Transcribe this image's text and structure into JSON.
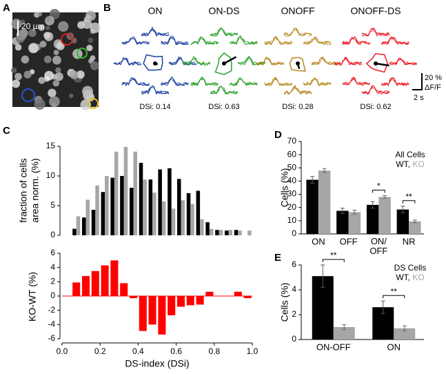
{
  "panel_labels": [
    "A",
    "B",
    "C",
    "D",
    "E"
  ],
  "image": {
    "scale_label": "20 µm"
  },
  "responses": {
    "cells": [
      {
        "name": "ON",
        "color": "#1c3f9e",
        "dsi": "DSi: 0.14"
      },
      {
        "name": "ON-DS",
        "color": "#2ca02c",
        "dsi": "DSi: 0.63"
      },
      {
        "name": "ONOFF",
        "color": "#b8891f",
        "dsi": "DSi: 0.28"
      },
      {
        "name": "ONOFF-DS",
        "color": "#ec1c24",
        "dsi": "DSi: 0.62"
      }
    ],
    "scale_y": "20 %",
    "scale_y_unit": "ΔF/F",
    "scale_x": "2 s"
  },
  "chart_data": [
    {
      "type": "histogram",
      "ylabel": [
        "fraction of cells",
        "area norm. (%)"
      ],
      "bins": [
        0.05,
        0.1,
        0.15,
        0.2,
        0.25,
        0.3,
        0.35,
        0.4,
        0.45,
        0.5,
        0.55,
        0.6,
        0.65,
        0.7,
        0.75,
        0.8,
        0.85,
        0.9,
        0.95,
        1.0
      ],
      "series": [
        {
          "color": "#000000",
          "values": [
            1.1,
            3.0,
            4.3,
            7.3,
            9.7,
            10.0,
            8.0,
            12.2,
            9.4,
            11.1,
            11.3,
            9.5,
            7.1,
            7.5,
            2.2,
            0.9,
            0.8,
            0.9,
            0
          ]
        },
        {
          "color": "#a6a6a6",
          "values": [
            3.2,
            6.0,
            8.4,
            10.0,
            14.1,
            14.9,
            14.1,
            9.4,
            7.2,
            5.7,
            4.5,
            5.9,
            5.3,
            2.7,
            1.1,
            0.9,
            0.9,
            0.8,
            0.8
          ]
        }
      ],
      "xlim": [
        0,
        1
      ],
      "ylim": [
        0,
        15
      ],
      "yticks": [
        0,
        5,
        10,
        15
      ]
    },
    {
      "type": "histogram",
      "ylabel": "KO-WT (%)",
      "xlabel": "DS-index (DSi)",
      "bins": [
        0.05,
        0.1,
        0.15,
        0.2,
        0.25,
        0.3,
        0.35,
        0.4,
        0.45,
        0.5,
        0.55,
        0.6,
        0.65,
        0.7,
        0.75,
        0.8,
        0.85,
        0.9,
        0.95,
        1.0
      ],
      "series": [
        {
          "color": "#ff0000",
          "values": [
            1.9,
            2.8,
            3.5,
            4.3,
            5.0,
            1.8,
            -0.3,
            -4.9,
            -4.0,
            -5.4,
            -2.7,
            -1.5,
            -1.3,
            -1.2,
            0.6,
            0,
            0,
            0.6,
            -0.3
          ]
        }
      ],
      "xlim": [
        0,
        1
      ],
      "xticks": [
        {
          "value": 0,
          "label": "0.0"
        },
        0.2,
        0.4,
        0.6,
        0.8,
        {
          "value": 1,
          "label": "1.0"
        }
      ],
      "ylim": [
        -6,
        6
      ],
      "yticks": [
        -6,
        -4,
        -2,
        0,
        2,
        4,
        6
      ],
      "zero_line": true
    },
    {
      "type": "bar",
      "ylabel": "Cells (%)",
      "categories": [
        "ON",
        "OFF",
        "ON/ OFF",
        "NR"
      ],
      "series": [
        {
          "name": "WT",
          "color": "#000000",
          "values": [
            41,
            17.5,
            22,
            18.5
          ],
          "errors": [
            2.5,
            2,
            2.5,
            2.5
          ]
        },
        {
          "name": "KO",
          "color": "#a6a6a6",
          "values": [
            48,
            16.5,
            28,
            9.5
          ],
          "errors": [
            1.5,
            1.5,
            1,
            1
          ]
        }
      ],
      "ylim": [
        0,
        70
      ],
      "yticks": [
        0,
        10,
        20,
        30,
        40,
        50,
        60,
        70
      ],
      "significance": [
        null,
        null,
        "*",
        "**"
      ],
      "legend_title": "All Cells",
      "legend_separator": ", "
    },
    {
      "type": "bar",
      "ylabel": "Cells (%)",
      "categories": [
        "ON-OFF",
        "ON"
      ],
      "series": [
        {
          "name": "WT",
          "color": "#000000",
          "values": [
            5.1,
            2.6
          ],
          "errors": [
            0.9,
            0.5
          ]
        },
        {
          "name": "KO",
          "color": "#a6a6a6",
          "values": [
            1.0,
            0.9
          ],
          "errors": [
            0.2,
            0.2
          ]
        }
      ],
      "ylim": [
        0,
        6
      ],
      "yticks": [
        0,
        2,
        4,
        6
      ],
      "significance": [
        "**",
        "**"
      ],
      "legend_title": "DS Cells",
      "legend_separator": ", "
    }
  ]
}
